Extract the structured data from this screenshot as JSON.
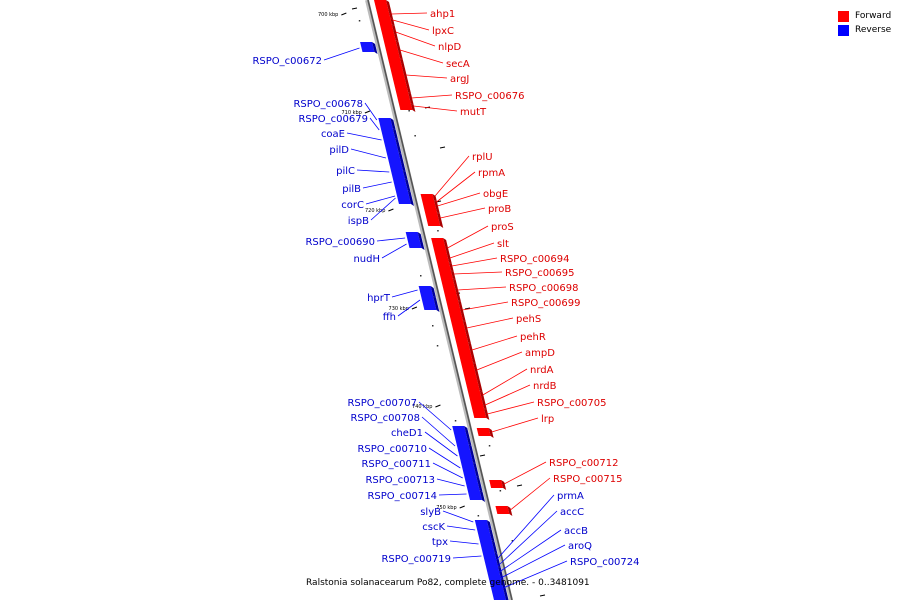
{
  "legend": {
    "forward_label": "Forward",
    "reverse_label": "Reverse",
    "forward_color": "#ff0000",
    "reverse_color": "#0000ff"
  },
  "caption": "Ralstonia solanacearum Po82, complete genome. - 0..3481091",
  "scale_ticks": [
    "700 kbp",
    "710 kbp",
    "720 kbp",
    "730 kbp",
    "740 kbp",
    "750 kbp"
  ],
  "forward_genes": [
    "ahp1",
    "lpxC",
    "nlpD",
    "secA",
    "argJ",
    "RSPO_c00676",
    "mutT",
    "rplU",
    "rpmA",
    "obgE",
    "proB",
    "proS",
    "slt",
    "RSPO_c00694",
    "RSPO_c00695",
    "RSPO_c00698",
    "RSPO_c00699",
    "pehS",
    "pehR",
    "ampD",
    "nrdA",
    "nrdB",
    "RSPO_c00705",
    "lrp",
    "RSPO_c00712",
    "RSPO_c00715"
  ],
  "reverse_genes": [
    "RSPO_c00672",
    "RSPO_c00678",
    "RSPO_c00679",
    "coaE",
    "pilD",
    "pilC",
    "pilB",
    "corC",
    "ispB",
    "RSPO_c00690",
    "nudH",
    "hprT",
    "ffh",
    "RSPO_c00707",
    "RSPO_c00708",
    "cheD1",
    "RSPO_c00710",
    "RSPO_c00711",
    "RSPO_c00713",
    "RSPO_c00714",
    "slyB",
    "cscK",
    "tpx",
    "RSPO_c00719"
  ],
  "reverse_genes_right": [
    "prmA",
    "accC",
    "accB",
    "aroQ",
    "RSPO_c00724"
  ]
}
